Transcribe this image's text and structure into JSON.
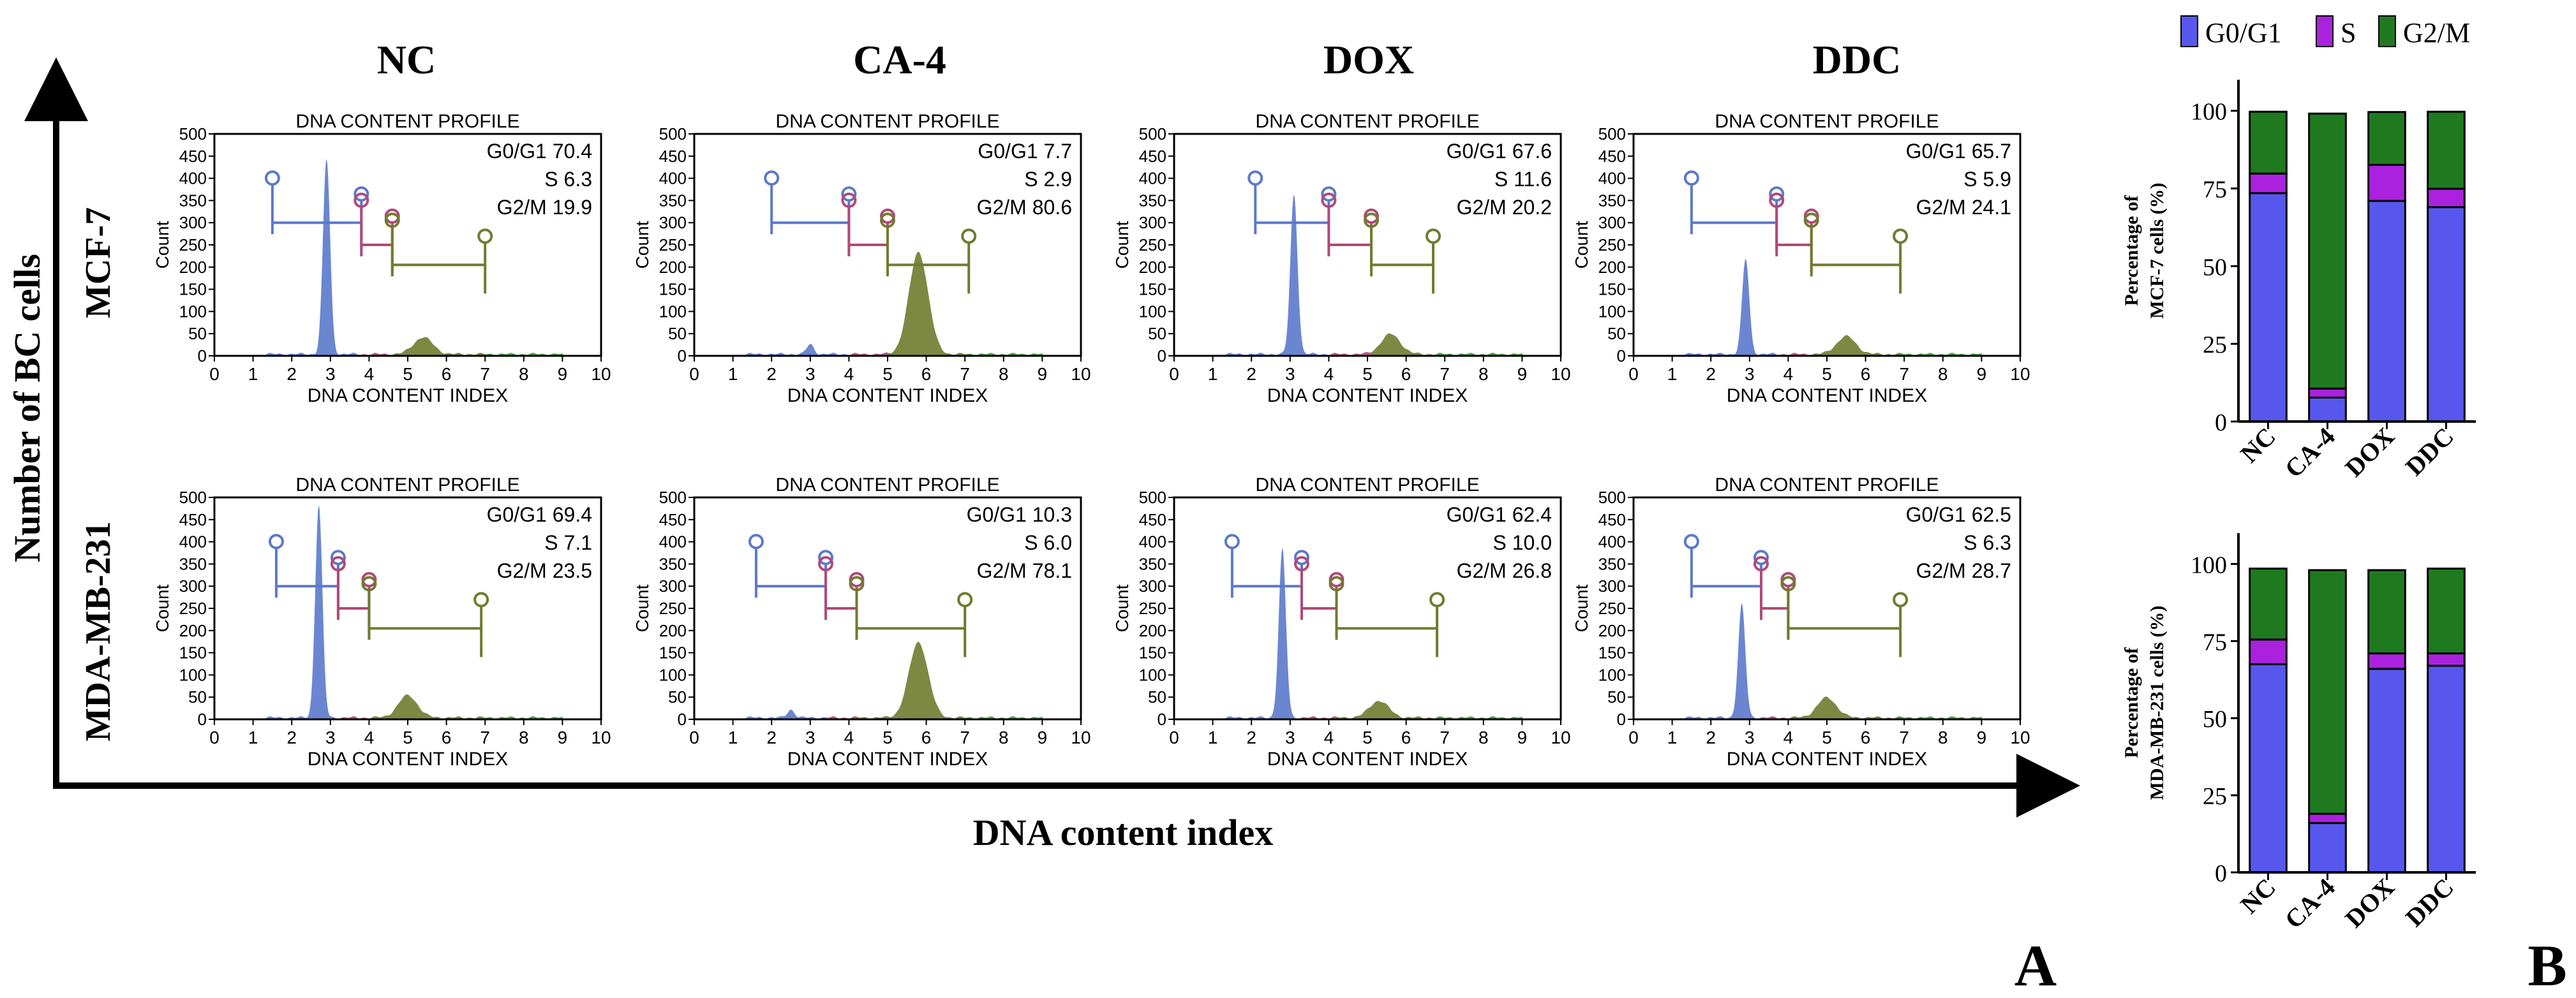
{
  "colors": {
    "g1": "#5b79cc",
    "s": "#b04a78",
    "g2": "#6f7c2e",
    "g2tail": "#3d9a3d",
    "bar_g1": "#5757ee",
    "bar_s": "#aa22dd",
    "bar_g2": "#1f7a1f"
  },
  "panel_a": {
    "label": "A",
    "y_axis_title": "Number of BC cells",
    "x_axis_title": "DNA content index",
    "conditions": [
      "NC",
      "CA-4",
      "DOX",
      "DDC"
    ],
    "cell_lines": [
      "MCF-7",
      "MDA-MB-231"
    ],
    "histogram_title": "DNA CONTENT PROFILE",
    "histogram_xlabel": "DNA CONTENT INDEX",
    "histogram_ylabel": "Count",
    "histogram_xticks": [
      "0",
      "1",
      "2",
      "3",
      "4",
      "5",
      "6",
      "7",
      "8",
      "9",
      "10"
    ],
    "histogram_yticks": [
      "0",
      "50",
      "100",
      "150",
      "200",
      "250",
      "300",
      "350",
      "400",
      "450",
      "500"
    ],
    "histogram_xlim": [
      0,
      10
    ],
    "histogram_ylim": [
      0,
      500
    ]
  },
  "chart_data": [
    {
      "type": "area",
      "panel": "A",
      "cell_line": "MCF-7",
      "condition": "NC",
      "title": "DNA CONTENT PROFILE",
      "xlabel": "DNA CONTENT INDEX",
      "ylabel": "Count",
      "xlim": [
        0,
        10
      ],
      "ylim": [
        0,
        500
      ],
      "peak1_x": 2.9,
      "peak1_count": 440,
      "peak2_x": 5.4,
      "peak2_count": 38,
      "stats": [
        {
          "label": "G0/G1",
          "value": "70.4"
        },
        {
          "label": "S",
          "value": "6.3"
        },
        {
          "label": "G2/M",
          "value": "19.9"
        }
      ],
      "gates": {
        "g1": [
          1.5,
          3.8
        ],
        "s": [
          3.8,
          4.6
        ],
        "g2": [
          4.6,
          7.0
        ]
      }
    },
    {
      "type": "area",
      "panel": "A",
      "cell_line": "MCF-7",
      "condition": "CA-4",
      "title": "DNA CONTENT PROFILE",
      "xlabel": "DNA CONTENT INDEX",
      "ylabel": "Count",
      "xlim": [
        0,
        10
      ],
      "ylim": [
        0,
        500
      ],
      "peak1_x": 3.0,
      "peak1_count": 22,
      "peak2_x": 5.8,
      "peak2_count": 230,
      "stats": [
        {
          "label": "G0/G1",
          "value": "7.7"
        },
        {
          "label": "S",
          "value": "2.9"
        },
        {
          "label": "G2/M",
          "value": "80.6"
        }
      ],
      "gates": {
        "g1": [
          2.0,
          4.0
        ],
        "s": [
          4.0,
          5.0
        ],
        "g2": [
          5.0,
          7.1
        ]
      }
    },
    {
      "type": "area",
      "panel": "A",
      "cell_line": "MCF-7",
      "condition": "DOX",
      "title": "DNA CONTENT PROFILE",
      "xlabel": "DNA CONTENT INDEX",
      "ylabel": "Count",
      "xlim": [
        0,
        10
      ],
      "ylim": [
        0,
        500
      ],
      "peak1_x": 3.1,
      "peak1_count": 360,
      "peak2_x": 5.6,
      "peak2_count": 45,
      "stats": [
        {
          "label": "G0/G1",
          "value": "67.6"
        },
        {
          "label": "S",
          "value": "11.6"
        },
        {
          "label": "G2/M",
          "value": "20.2"
        }
      ],
      "gates": {
        "g1": [
          2.1,
          4.0
        ],
        "s": [
          4.0,
          5.1
        ],
        "g2": [
          5.1,
          6.7
        ]
      }
    },
    {
      "type": "area",
      "panel": "A",
      "cell_line": "MCF-7",
      "condition": "DDC",
      "title": "DNA CONTENT PROFILE",
      "xlabel": "DNA CONTENT INDEX",
      "ylabel": "Count",
      "xlim": [
        0,
        10
      ],
      "ylim": [
        0,
        500
      ],
      "peak1_x": 2.9,
      "peak1_count": 215,
      "peak2_x": 5.5,
      "peak2_count": 40,
      "stats": [
        {
          "label": "G0/G1",
          "value": "65.7"
        },
        {
          "label": "S",
          "value": "5.9"
        },
        {
          "label": "G2/M",
          "value": "24.1"
        }
      ],
      "gates": {
        "g1": [
          1.5,
          3.7
        ],
        "s": [
          3.7,
          4.6
        ],
        "g2": [
          4.6,
          6.9
        ]
      }
    },
    {
      "type": "area",
      "panel": "A",
      "cell_line": "MDA-MB-231",
      "condition": "NC",
      "title": "DNA CONTENT PROFILE",
      "xlabel": "DNA CONTENT INDEX",
      "ylabel": "Count",
      "xlim": [
        0,
        10
      ],
      "ylim": [
        0,
        500
      ],
      "peak1_x": 2.7,
      "peak1_count": 480,
      "peak2_x": 5.0,
      "peak2_count": 50,
      "stats": [
        {
          "label": "G0/G1",
          "value": "69.4"
        },
        {
          "label": "S",
          "value": "7.1"
        },
        {
          "label": "G2/M",
          "value": "23.5"
        }
      ],
      "gates": {
        "g1": [
          1.6,
          3.2
        ],
        "s": [
          3.2,
          4.0
        ],
        "g2": [
          4.0,
          6.9
        ]
      }
    },
    {
      "type": "area",
      "panel": "A",
      "cell_line": "MDA-MB-231",
      "condition": "CA-4",
      "title": "DNA CONTENT PROFILE",
      "xlabel": "DNA CONTENT INDEX",
      "ylabel": "Count",
      "xlim": [
        0,
        10
      ],
      "ylim": [
        0,
        500
      ],
      "peak1_x": 2.5,
      "peak1_count": 18,
      "peak2_x": 5.8,
      "peak2_count": 170,
      "stats": [
        {
          "label": "G0/G1",
          "value": "10.3"
        },
        {
          "label": "S",
          "value": "6.0"
        },
        {
          "label": "G2/M",
          "value": "78.1"
        }
      ],
      "gates": {
        "g1": [
          1.6,
          3.4
        ],
        "s": [
          3.4,
          4.2
        ],
        "g2": [
          4.2,
          7.0
        ]
      }
    },
    {
      "type": "area",
      "panel": "A",
      "cell_line": "MDA-MB-231",
      "condition": "DOX",
      "title": "DNA CONTENT PROFILE",
      "xlabel": "DNA CONTENT INDEX",
      "ylabel": "Count",
      "xlim": [
        0,
        10
      ],
      "ylim": [
        0,
        500
      ],
      "peak1_x": 2.8,
      "peak1_count": 380,
      "peak2_x": 5.3,
      "peak2_count": 38,
      "stats": [
        {
          "label": "G0/G1",
          "value": "62.4"
        },
        {
          "label": "S",
          "value": "10.0"
        },
        {
          "label": "G2/M",
          "value": "26.8"
        }
      ],
      "gates": {
        "g1": [
          1.5,
          3.3
        ],
        "s": [
          3.3,
          4.2
        ],
        "g2": [
          4.2,
          6.8
        ]
      }
    },
    {
      "type": "area",
      "panel": "A",
      "cell_line": "MDA-MB-231",
      "condition": "DDC",
      "title": "DNA CONTENT PROFILE",
      "xlabel": "DNA CONTENT INDEX",
      "ylabel": "Count",
      "xlim": [
        0,
        10
      ],
      "ylim": [
        0,
        500
      ],
      "peak1_x": 2.8,
      "peak1_count": 255,
      "peak2_x": 5.0,
      "peak2_count": 45,
      "stats": [
        {
          "label": "G0/G1",
          "value": "62.5"
        },
        {
          "label": "S",
          "value": "6.3"
        },
        {
          "label": "G2/M",
          "value": "28.7"
        }
      ],
      "gates": {
        "g1": [
          1.5,
          3.3
        ],
        "s": [
          3.3,
          4.0
        ],
        "g2": [
          4.0,
          6.9
        ]
      }
    },
    {
      "type": "bar",
      "stacked": true,
      "panel": "B",
      "cell_line": "MCF-7",
      "ylabel": "Percentage of MCF-7 cells (%)",
      "ylim": [
        0,
        110
      ],
      "yticks": [
        "0",
        "25",
        "50",
        "75",
        "100"
      ],
      "categories": [
        "NC",
        "CA-4",
        "DOX",
        "DDC"
      ],
      "series": [
        {
          "name": "G0/G1",
          "values": [
            73.5,
            7.7,
            71.0,
            69.0
          ]
        },
        {
          "name": "S",
          "values": [
            6.3,
            2.9,
            11.6,
            5.9
          ]
        },
        {
          "name": "G2/M",
          "values": [
            19.9,
            88.5,
            17.0,
            24.8
          ]
        }
      ]
    },
    {
      "type": "bar",
      "stacked": true,
      "panel": "B",
      "cell_line": "MDA-MB-231",
      "ylabel": "Percentage of MDA-MB-231 cells (%)",
      "ylim": [
        0,
        110
      ],
      "yticks": [
        "0",
        "25",
        "50",
        "75",
        "100"
      ],
      "categories": [
        "NC",
        "CA-4",
        "DOX",
        "DDC"
      ],
      "series": [
        {
          "name": "G0/G1",
          "values": [
            67.5,
            16.0,
            66.0,
            67.0
          ]
        },
        {
          "name": "S",
          "values": [
            8.0,
            3.0,
            5.0,
            4.0
          ]
        },
        {
          "name": "G2/M",
          "values": [
            23.0,
            79.0,
            27.0,
            27.5
          ]
        }
      ]
    }
  ],
  "panel_b": {
    "label": "B",
    "legend": [
      {
        "name": "G0/G1",
        "color": "#5757ee"
      },
      {
        "name": "S",
        "color": "#aa22dd"
      },
      {
        "name": "G2/M",
        "color": "#1f7a1f"
      }
    ]
  }
}
